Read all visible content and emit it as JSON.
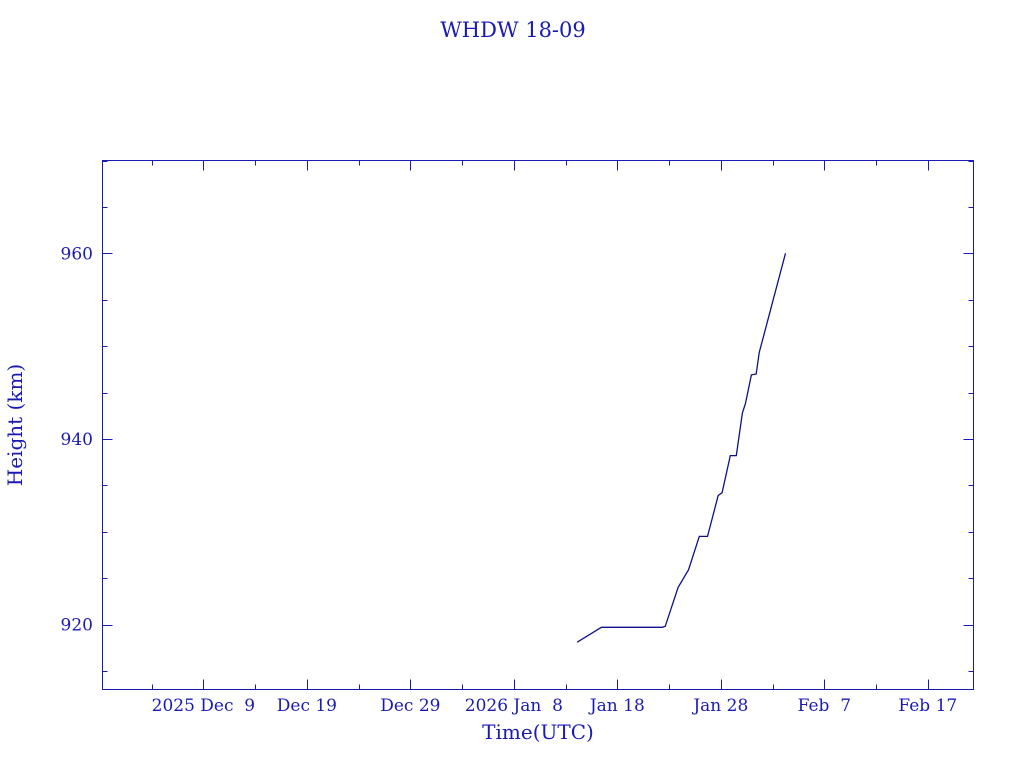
{
  "chart_data": {
    "type": "line",
    "title": "WHDW 18-09",
    "xlabel": "Time(UTC)",
    "ylabel": "Height (km)",
    "xlim": [
      "2025-11-29T06:00:00Z",
      "2026-02-21T10:00:00Z"
    ],
    "ylim": [
      913,
      970
    ],
    "x_ticks": [
      {
        "date": "2025-12-09T00:00:00Z",
        "label": "2025 Dec  9"
      },
      {
        "date": "2025-12-19T00:00:00Z",
        "label": "Dec 19"
      },
      {
        "date": "2025-12-29T00:00:00Z",
        "label": "Dec 29"
      },
      {
        "date": "2026-01-08T00:00:00Z",
        "label": "2026 Jan  8"
      },
      {
        "date": "2026-01-18T00:00:00Z",
        "label": "Jan 18"
      },
      {
        "date": "2026-01-28T00:00:00Z",
        "label": "Jan 28"
      },
      {
        "date": "2026-02-07T00:00:00Z",
        "label": "Feb  7"
      },
      {
        "date": "2026-02-17T00:00:00Z",
        "label": "Feb 17"
      }
    ],
    "y_ticks": [
      {
        "value": 920,
        "label": "920"
      },
      {
        "value": 940,
        "label": "940"
      },
      {
        "value": 960,
        "label": "960"
      }
    ],
    "grid": false,
    "colors": {
      "axis": "#1a1ab4",
      "line": "#10108a",
      "text": "#1a1ab4"
    },
    "series": [
      {
        "x": [
          "2026-01-14T03:00:00Z",
          "2026-01-16T11:00:00Z",
          "2026-01-22T08:00:00Z",
          "2026-01-22T15:00:00Z",
          "2026-01-23T21:00:00Z",
          "2026-01-24T21:00:00Z",
          "2026-01-25T22:00:00Z",
          "2026-01-26T17:00:00Z",
          "2026-01-27T18:00:00Z",
          "2026-01-28T03:00:00Z",
          "2026-01-28T22:00:00Z",
          "2026-01-29T12:00:00Z",
          "2026-01-30T02:00:00Z",
          "2026-01-30T09:00:00Z",
          "2026-01-30T23:00:00Z",
          "2026-01-31T10:00:00Z",
          "2026-01-31T17:00:00Z",
          "2026-02-03T06:00:00Z"
        ],
        "y": [
          918.1,
          919.7,
          919.7,
          919.8,
          924.0,
          925.9,
          929.5,
          929.5,
          933.9,
          934.2,
          938.2,
          938.2,
          942.8,
          943.8,
          946.9,
          947.0,
          949.3,
          960.0
        ]
      }
    ]
  }
}
